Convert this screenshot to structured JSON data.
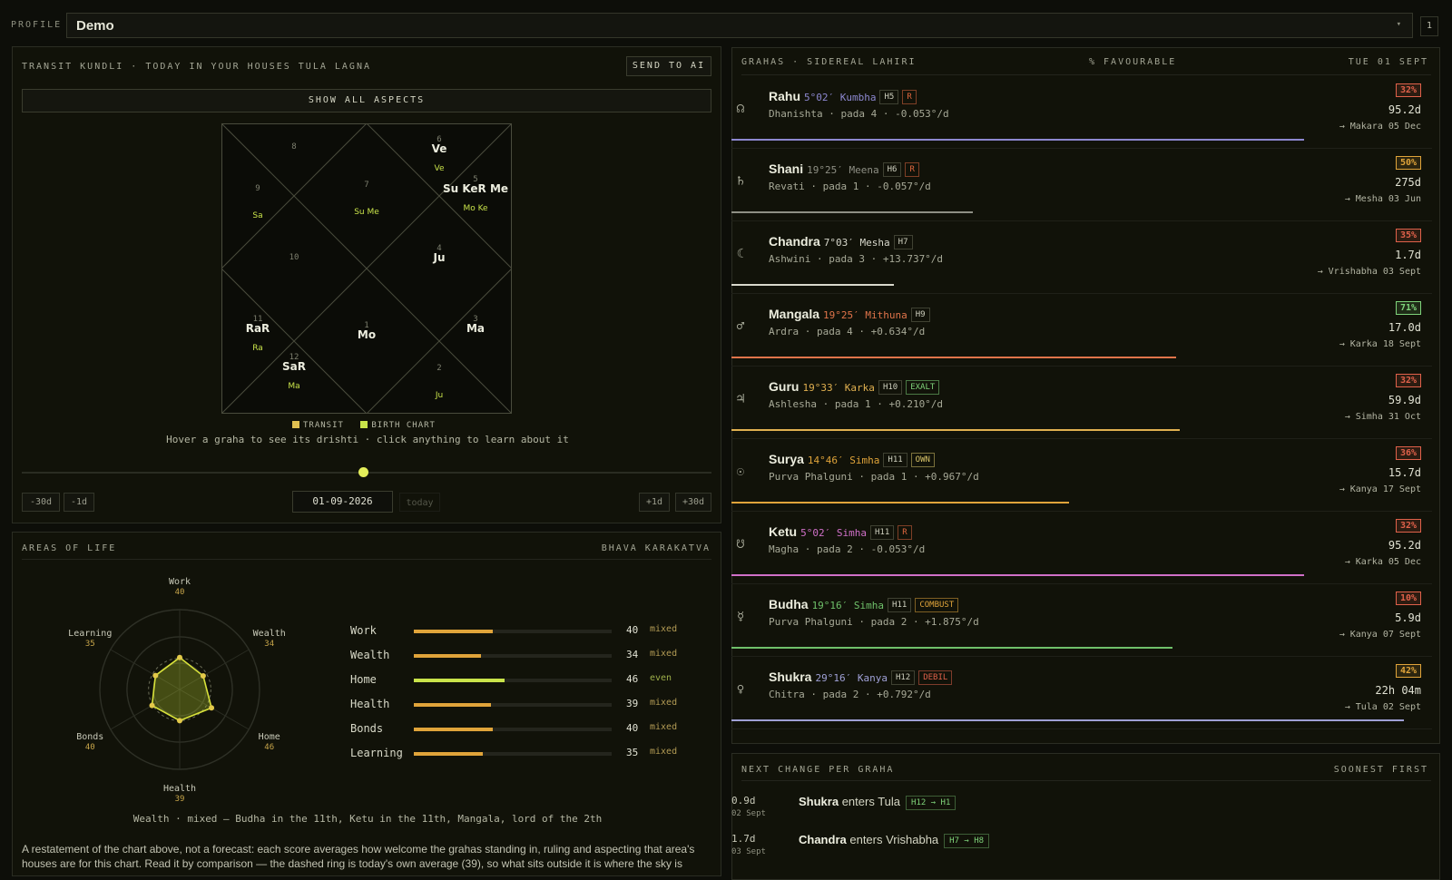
{
  "profile": {
    "label": "PROFILE",
    "name": "Demo",
    "count": "1"
  },
  "transit": {
    "title": "TRANSIT KUNDLI · TODAY IN YOUR HOUSES TULA LAGNA",
    "send_button": "SEND TO AI",
    "aspects_button": "SHOW ALL ASPECTS",
    "legend_transit": "TRANSIT",
    "legend_birth": "BIRTH CHART",
    "hint": "Hover a graha to see its drishti · click anything to learn about it",
    "controls": {
      "minus30": "-30d",
      "minus1": "-1d",
      "date": "01-09-2026",
      "today": "today",
      "plus1": "+1d",
      "plus30": "+30d"
    },
    "slider_position": 0.5,
    "houses": [
      {
        "num": "8",
        "transit": "",
        "birth": ""
      },
      {
        "num": "7",
        "transit": "",
        "birth": "Su Me"
      },
      {
        "num": "6",
        "transit": "Ve",
        "birth": "Ve"
      },
      {
        "num": "9",
        "transit": "",
        "birth": "Sa"
      },
      {
        "num": "5",
        "transit": "Su KeR Me",
        "birth": "Mo Ke"
      },
      {
        "num": "10",
        "transit": "",
        "birth": ""
      },
      {
        "num": "4",
        "transit": "Ju",
        "birth": ""
      },
      {
        "num": "1",
        "transit": "Mo",
        "birth": ""
      },
      {
        "num": "11",
        "transit": "RaR",
        "birth": "Ra"
      },
      {
        "num": "3",
        "transit": "Ma",
        "birth": ""
      },
      {
        "num": "12",
        "transit": "SaR",
        "birth": "Ma"
      },
      {
        "num": "2",
        "transit": "",
        "birth": "Ju"
      }
    ]
  },
  "areas": {
    "title": "AREAS OF LIFE",
    "subtitle": "BHAVA KARAKATVA",
    "items": [
      {
        "name": "Work",
        "score": "40",
        "status": "mixed",
        "value": 40
      },
      {
        "name": "Wealth",
        "score": "34",
        "status": "mixed",
        "value": 34
      },
      {
        "name": "Home",
        "score": "46",
        "status": "even",
        "value": 46
      },
      {
        "name": "Health",
        "score": "39",
        "status": "mixed",
        "value": 39
      },
      {
        "name": "Bonds",
        "score": "40",
        "status": "mixed",
        "value": 40
      },
      {
        "name": "Learning",
        "score": "35",
        "status": "mixed",
        "value": 35
      }
    ],
    "caption": "Wealth · mixed — Budha in the 11th, Ketu in the 11th, Mangala, lord of the 2th",
    "paragraph": "A restatement of the chart above, not a forecast: each score averages how welcome the grahas standing in, ruling and aspecting that area's houses are for this chart. Read it by comparison — the dashed ring is today's own average (39), so what sits outside it is where the sky is"
  },
  "grahas_header": {
    "left": "GRAHAS · SIDEREAL LAHIRI",
    "mid": "% FAVOURABLE",
    "right": "TUE 01 SEPT"
  },
  "grahas": [
    {
      "icon": "☊",
      "icon_name": "rahu-icon",
      "name": "Rahu",
      "pos": "5°02′ Kumbha",
      "house": "H5",
      "tag": "R",
      "tag_color": "#e0673f",
      "sub": "Dhanishta · pada 4  ·  -0.053°/d",
      "pct": "32%",
      "pct_color": "#e0614a",
      "dur": "95.2d",
      "next": "→ Makara 05 Dec",
      "color": "#8d88d0",
      "progress": 0.83
    },
    {
      "icon": "♄",
      "icon_name": "shani-icon",
      "name": "Shani",
      "pos": "19°25′ Meena",
      "house": "H6",
      "tag": "R",
      "tag_color": "#e0673f",
      "sub": "Revati · pada 1  ·  -0.057°/d",
      "pct": "50%",
      "pct_color": "#e0a43a",
      "dur": "275d",
      "next": "→ Mesha 03 Jun",
      "color": "#8e8f84",
      "progress": 0.35
    },
    {
      "icon": "☾",
      "icon_name": "chandra-icon",
      "name": "Chandra",
      "pos": "7°03′ Mesha",
      "house": "H7",
      "tag": "",
      "tag_color": "",
      "sub": "Ashwini · pada 3  ·  +13.737°/d",
      "pct": "35%",
      "pct_color": "#e0614a",
      "dur": "1.7d",
      "next": "→ Vrishabha 03 Sept",
      "color": "#d8d8cc",
      "progress": 0.235
    },
    {
      "icon": "♂",
      "icon_name": "mangala-icon",
      "name": "Mangala",
      "pos": "19°25′ Mithuna",
      "house": "H9",
      "tag": "",
      "tag_color": "",
      "sub": "Ardra · pada 4  ·  +0.634°/d",
      "pct": "71%",
      "pct_color": "#7fd37a",
      "dur": "17.0d",
      "next": "→ Karka 18 Sept",
      "color": "#e0744a",
      "progress": 0.645
    },
    {
      "icon": "♃",
      "icon_name": "guru-icon",
      "name": "Guru",
      "pos": "19°33′ Karka",
      "house": "H10",
      "tag": "EXALT",
      "tag_color": "#7fd37a",
      "sub": "Ashlesha · pada 1  ·  +0.210°/d",
      "pct": "32%",
      "pct_color": "#e0614a",
      "dur": "59.9d",
      "next": "→ Simha 31 Oct",
      "color": "#e0b050",
      "progress": 0.65
    },
    {
      "icon": "☉",
      "icon_name": "surya-icon",
      "name": "Surya",
      "pos": "14°46′ Simha",
      "house": "H11",
      "tag": "OWN",
      "tag_color": "#d9c468",
      "sub": "Purva Phalguni · pada 1  ·  +0.967°/d",
      "pct": "36%",
      "pct_color": "#e0614a",
      "dur": "15.7d",
      "next": "→ Kanya 17 Sept",
      "color": "#e0a43a",
      "progress": 0.49
    },
    {
      "icon": "☋",
      "icon_name": "ketu-icon",
      "name": "Ketu",
      "pos": "5°02′ Simha",
      "house": "H11",
      "tag": "R",
      "tag_color": "#e0673f",
      "sub": "Magha · pada 2  ·  -0.053°/d",
      "pct": "32%",
      "pct_color": "#e0614a",
      "dur": "95.2d",
      "next": "→ Karka 05 Dec",
      "color": "#d070c8",
      "progress": 0.83
    },
    {
      "icon": "☿",
      "icon_name": "budha-icon",
      "name": "Budha",
      "pos": "19°16′ Simha",
      "house": "H11",
      "tag": "COMBUST",
      "tag_color": "#e0a43a",
      "sub": "Purva Phalguni · pada 2  ·  +1.875°/d",
      "pct": "10%",
      "pct_color": "#e0614a",
      "dur": "5.9d",
      "next": "→ Kanya 07 Sept",
      "color": "#6fc06a",
      "progress": 0.64
    },
    {
      "icon": "♀",
      "icon_name": "shukra-icon",
      "name": "Shukra",
      "pos": "29°16′ Kanya",
      "house": "H12",
      "tag": "DEBIL",
      "tag_color": "#e0614a",
      "sub": "Chitra · pada 2  ·  +0.792°/d",
      "pct": "42%",
      "pct_color": "#e0a43a",
      "dur": "22h 04m",
      "next": "→ Tula 02 Sept",
      "color": "#9fa0d6",
      "progress": 0.975
    }
  ],
  "next_change": {
    "title": "NEXT CHANGE PER GRAHA",
    "subtitle": "SOONEST FIRST",
    "items": [
      {
        "dur": "0.9d",
        "date": "02 Sept",
        "graha": "Shukra",
        "verb": "enters Tula",
        "tag": "H12 → H1",
        "tag_color": "#7fd37a"
      },
      {
        "dur": "1.7d",
        "date": "03 Sept",
        "graha": "Chandra",
        "verb": "enters Vrishabha",
        "tag": "H7 → H8",
        "tag_color": "#7fd37a"
      }
    ]
  },
  "colors": {
    "accent": "#e3ee5a",
    "transit": "#e0c050",
    "birth": "#c9e34a",
    "radar": "#d8e23a"
  }
}
